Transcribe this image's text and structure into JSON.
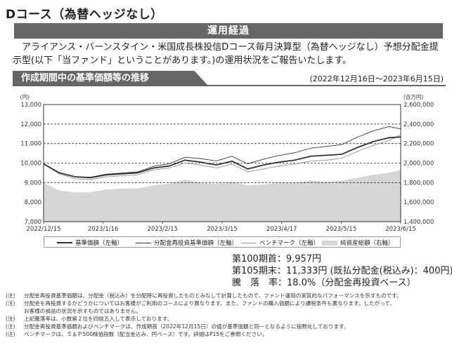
{
  "title": "Dコース（為替ヘッジなし）",
  "section_header": "運用経過",
  "intro": "アライアンス・バーンスタイン・米国成長株投信Dコース毎月決算型（為替ヘッジなし）予想分配金提示型(以下「当ファンド」ということがあります。)の運用状況をご報告いたします。",
  "subsection_header": "作成期間中の基準価額等の推移",
  "period": "(2022年12月16日～2023年6月15日)",
  "chart_data": {
    "type": "line",
    "x_tick_labels": [
      "2022/12/15",
      "2023/1/16",
      "2023/2/15",
      "2023/3/15",
      "2023/4/17",
      "2023/5/15",
      "2023/6/15"
    ],
    "y_left": {
      "unit": "(円)",
      "min": 7000,
      "max": 13000,
      "ticks": [
        7000,
        8000,
        9000,
        10000,
        11000,
        12000,
        13000
      ],
      "tick_labels": [
        "7,000",
        "8,000",
        "9,000",
        "10,000",
        "11,000",
        "12,000",
        "13,000"
      ]
    },
    "y_right": {
      "unit": "(百万円)",
      "min": 1400000,
      "max": 2600000,
      "ticks": [
        1400000,
        1600000,
        1800000,
        2000000,
        2200000,
        2400000,
        2600000
      ],
      "tick_labels": [
        "1,400,000",
        "1,600,000",
        "1,800,000",
        "2,000,000",
        "2,200,000",
        "2,400,000",
        "2,600,000"
      ]
    },
    "dashed_gridlines_left": [
      9000,
      10000,
      11000,
      12000
    ],
    "series": [
      {
        "name": "基準価額（左軸）",
        "axis": "left",
        "style": "solid-dark",
        "x": [
          0,
          8,
          16,
          24,
          32,
          40,
          48,
          56,
          64,
          72,
          80,
          88,
          96,
          104,
          112,
          120,
          128,
          136,
          144,
          152,
          160,
          168,
          176,
          182
        ],
        "y": [
          9957,
          9500,
          9300,
          9250,
          9400,
          9450,
          9500,
          9750,
          9850,
          10150,
          10050,
          9900,
          10100,
          9700,
          9900,
          10050,
          10150,
          10350,
          10400,
          10450,
          10800,
          11100,
          11300,
          11333
        ]
      },
      {
        "name": "分配金再投資基準価額（左軸）",
        "axis": "left",
        "style": "thin-dark",
        "x": [
          0,
          8,
          16,
          24,
          32,
          40,
          48,
          56,
          64,
          72,
          80,
          88,
          96,
          104,
          112,
          120,
          128,
          136,
          144,
          152,
          160,
          168,
          176,
          182
        ],
        "y": [
          9957,
          9500,
          9300,
          9280,
          9430,
          9490,
          9550,
          9830,
          9960,
          10300,
          10230,
          10110,
          10350,
          9960,
          10200,
          10390,
          10530,
          10760,
          10850,
          10950,
          11330,
          11650,
          11870,
          11753
        ]
      },
      {
        "name": "ベンチマーク（左軸）",
        "axis": "left",
        "style": "gray",
        "x": [
          0,
          8,
          16,
          24,
          32,
          40,
          48,
          56,
          64,
          72,
          80,
          88,
          96,
          104,
          112,
          120,
          128,
          136,
          144,
          152,
          160,
          168,
          176,
          182
        ],
        "y": [
          9957,
          9450,
          9200,
          9150,
          9300,
          9350,
          9400,
          9650,
          9750,
          10000,
          9900,
          9750,
          9950,
          9550,
          9700,
          9850,
          9950,
          10100,
          10150,
          10250,
          10600,
          10900,
          11150,
          11450
        ]
      },
      {
        "name": "純資産総額（右軸）",
        "axis": "right",
        "style": "area",
        "x": [
          0,
          8,
          16,
          24,
          32,
          40,
          48,
          56,
          64,
          72,
          80,
          88,
          96,
          104,
          112,
          120,
          128,
          136,
          144,
          152,
          160,
          168,
          176,
          182
        ],
        "y": [
          1800000,
          1720000,
          1700000,
          1700000,
          1730000,
          1740000,
          1740000,
          1770000,
          1790000,
          1830000,
          1800000,
          1790000,
          1810000,
          1770000,
          1780000,
          1800000,
          1800000,
          1820000,
          1810000,
          1820000,
          1850000,
          1880000,
          1900000,
          1930000
        ]
      }
    ]
  },
  "legend": [
    "基準価額（左軸）",
    "分配金再投資基準価額（左軸）",
    "ベンチマーク（左軸）",
    "純資産総額（右軸）"
  ],
  "summary": {
    "row1_label": "第100期首：",
    "row1_value": "9,957円",
    "row2_label": "第105期末：",
    "row2_value": "11,333円 (既払分配金(税込み)：400円)",
    "row3_label": "騰　落　率：",
    "row3_value": "18.0%（分配金再投資ベース）"
  },
  "notes": [
    {
      "prefix": "(注)",
      "text": "分配金再投資基準価額は、分配金（税込み）を分配時に再投資したものとみなして計算したもので、ファンド運用の実質的なパフォーマンスを示すものです。"
    },
    {
      "prefix": "(注)",
      "text": "分配金を再投資するかどうかについてはお客様がご利用のコースにより異なります。また、ファンドの購入価額により課税条件も異なります。したがって、"
    },
    {
      "prefix": "",
      "text": "お客様の損益の状況を示すものではありません。"
    },
    {
      "prefix": "(注)",
      "text": "上記騰落率は、小数第２位を四捨五入して表示しております。"
    },
    {
      "prefix": "(注)",
      "text": "分配金再投資基準価額およびベンチマークは、作成期首（2022年12月15日）の値が基準価額と同一となるように指数化しております。"
    },
    {
      "prefix": "(注)",
      "text": "ベンチマークは、Ｓ＆Ｐ500株価指数（配当金込み、円ベース）です。詳細はP15をご参照ください。"
    }
  ]
}
